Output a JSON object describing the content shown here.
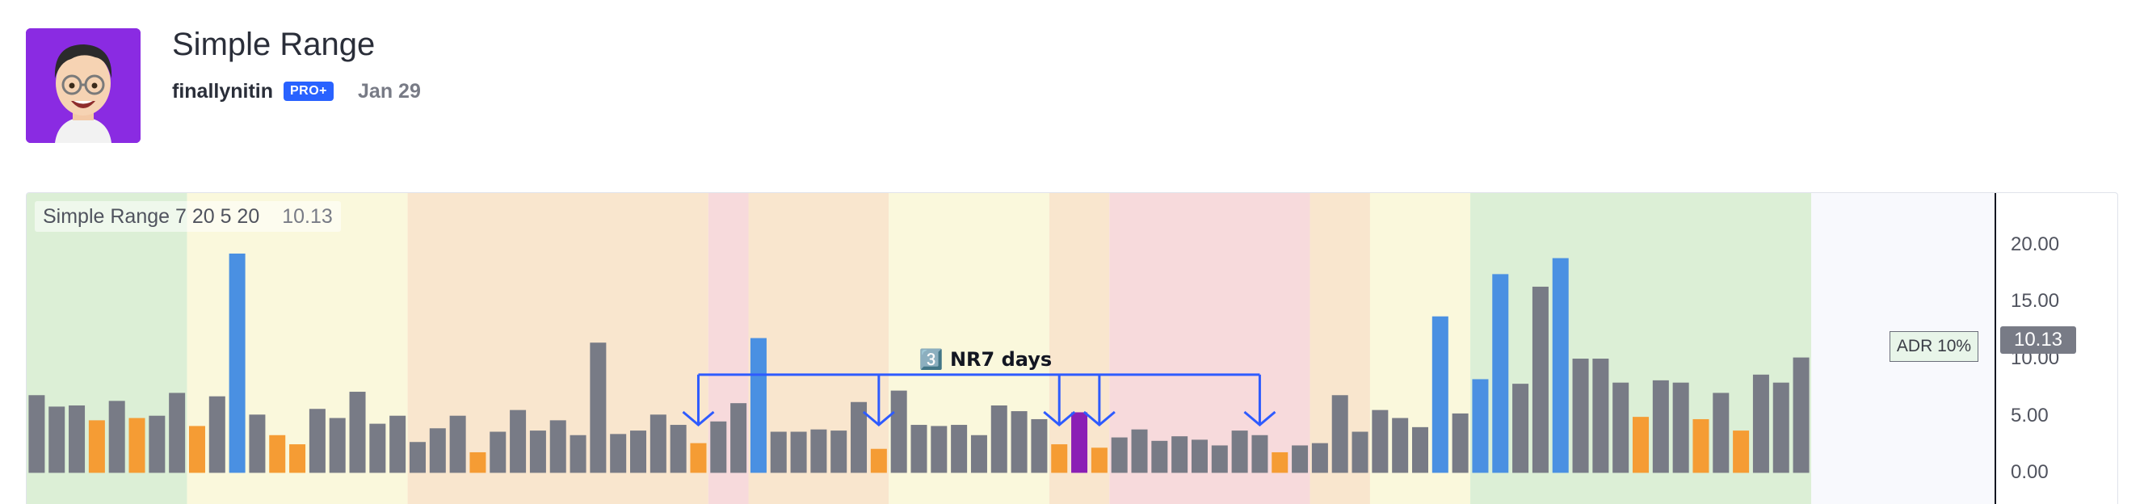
{
  "header": {
    "title": "Simple Range",
    "author": "finallynitin",
    "badge": "PRO+",
    "date": "Jan 29"
  },
  "indicator": {
    "legend_name": "Simple Range 7 20 5 20",
    "legend_value": "10.13",
    "adr_label": "ADR 10%",
    "last_value": "10.13"
  },
  "annotation": {
    "label": "3️⃣ NR7 days"
  },
  "colors": {
    "gray": "#787b86",
    "orange": "#f59c34",
    "blue": "#4a90e2",
    "purple": "#8b1fb5",
    "bg_green": "#dcefd6",
    "bg_yellow": "#faf8dc",
    "bg_orange": "#f9e6ce",
    "bg_red": "#f7dadc",
    "arrow": "#2e5bff"
  },
  "chart_data": {
    "type": "bar",
    "title": "Simple Range 7 20 5 20",
    "ylim": [
      -2.8,
      24.5
    ],
    "yticks": [
      "0.00",
      "5.00",
      "10.00",
      "15.00",
      "20.00"
    ],
    "values": [
      6.8,
      5.8,
      5.9,
      4.6,
      6.3,
      4.8,
      5.0,
      7.0,
      4.1,
      6.7,
      19.2,
      5.1,
      3.3,
      2.5,
      5.6,
      4.8,
      7.1,
      4.3,
      5.0,
      2.7,
      3.9,
      5.0,
      1.8,
      3.6,
      5.5,
      3.7,
      4.6,
      3.3,
      11.4,
      3.4,
      3.7,
      5.1,
      4.2,
      2.6,
      4.5,
      6.1,
      11.8,
      3.6,
      3.6,
      3.8,
      3.7,
      6.2,
      2.1,
      7.2,
      4.2,
      4.1,
      4.2,
      3.3,
      5.9,
      5.4,
      4.7,
      2.5,
      5.3,
      2.2,
      3.1,
      3.8,
      2.8,
      3.2,
      2.9,
      2.4,
      3.7,
      3.3,
      1.8,
      2.4,
      2.6,
      6.8,
      3.6,
      5.5,
      4.8,
      4.0,
      13.7,
      5.2,
      8.2,
      17.4,
      7.8,
      16.3,
      18.8,
      10.0,
      10.0,
      7.9,
      4.9,
      8.1,
      7.9,
      4.7,
      7.0,
      3.7,
      8.6,
      7.9,
      10.1
    ],
    "bar_colors": [
      "gray",
      "gray",
      "gray",
      "orange",
      "gray",
      "orange",
      "gray",
      "gray",
      "orange",
      "gray",
      "blue",
      "gray",
      "orange",
      "orange",
      "gray",
      "gray",
      "gray",
      "gray",
      "gray",
      "gray",
      "gray",
      "gray",
      "orange",
      "gray",
      "gray",
      "gray",
      "gray",
      "gray",
      "gray",
      "gray",
      "gray",
      "gray",
      "gray",
      "orange",
      "gray",
      "gray",
      "blue",
      "gray",
      "gray",
      "gray",
      "gray",
      "gray",
      "orange",
      "gray",
      "gray",
      "gray",
      "gray",
      "gray",
      "gray",
      "gray",
      "gray",
      "orange",
      "purple",
      "orange",
      "gray",
      "gray",
      "gray",
      "gray",
      "gray",
      "gray",
      "gray",
      "gray",
      "orange",
      "gray",
      "gray",
      "gray",
      "gray",
      "gray",
      "gray",
      "gray",
      "blue",
      "gray",
      "blue",
      "blue",
      "gray",
      "gray",
      "blue",
      "gray",
      "gray",
      "gray",
      "orange",
      "gray",
      "gray",
      "orange",
      "gray",
      "orange",
      "gray",
      "gray",
      "gray"
    ],
    "background_bands": [
      {
        "from": 0,
        "to": 7,
        "color": "bg_green"
      },
      {
        "from": 8,
        "to": 18,
        "color": "bg_yellow"
      },
      {
        "from": 19,
        "to": 33,
        "color": "bg_orange"
      },
      {
        "from": 34,
        "to": 35,
        "color": "bg_red"
      },
      {
        "from": 36,
        "to": 42,
        "color": "bg_orange"
      },
      {
        "from": 43,
        "to": 50,
        "color": "bg_yellow"
      },
      {
        "from": 51,
        "to": 53,
        "color": "bg_orange"
      },
      {
        "from": 54,
        "to": 63,
        "color": "bg_red"
      },
      {
        "from": 64,
        "to": 66,
        "color": "bg_orange"
      },
      {
        "from": 67,
        "to": 71,
        "color": "bg_yellow"
      },
      {
        "from": 72,
        "to": 88,
        "color": "bg_green"
      }
    ],
    "nr7_markers": [
      33,
      42,
      51,
      53,
      61
    ],
    "bracket_level": 8.6,
    "arrow_tip_level": 4.2
  }
}
